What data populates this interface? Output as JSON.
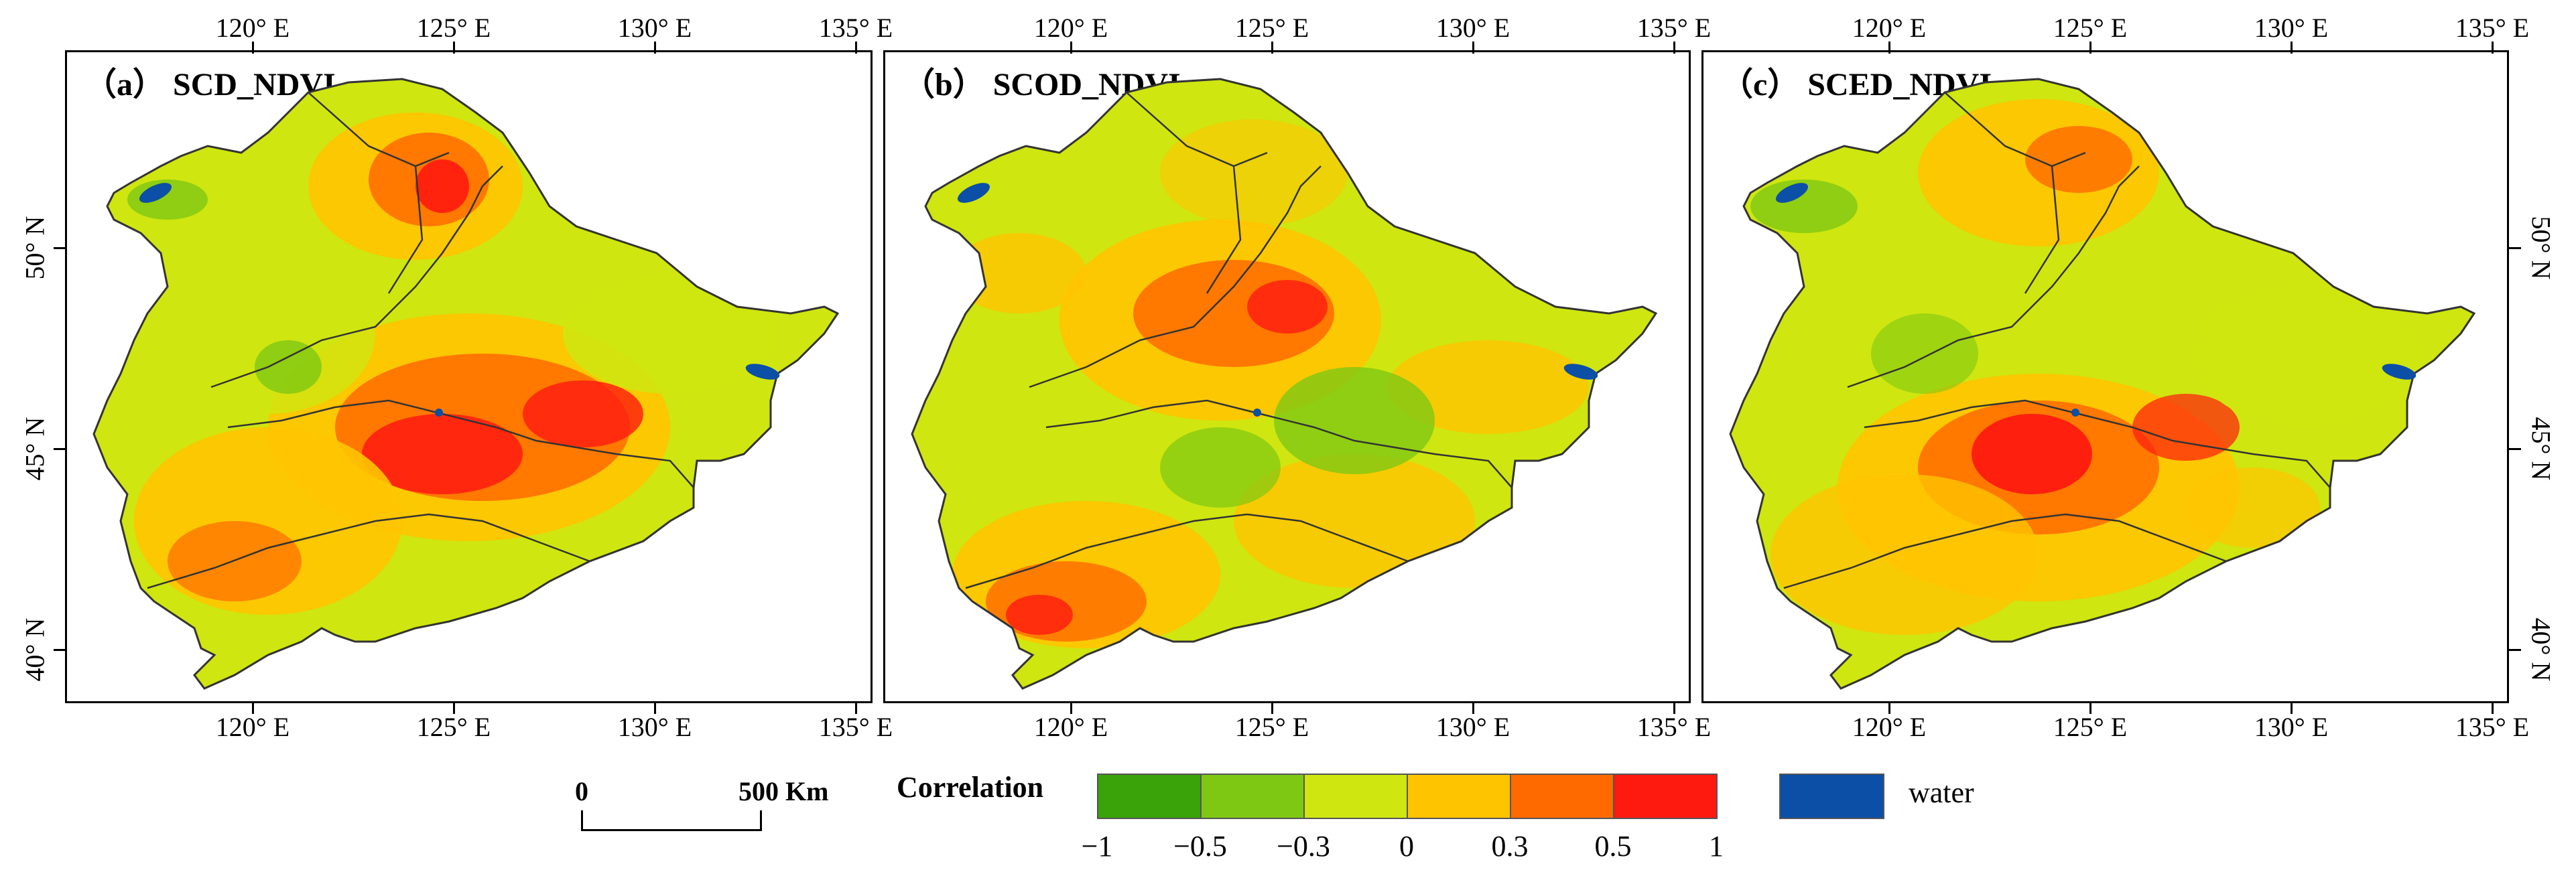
{
  "panels": [
    {
      "title": "（a） SCD_NDVI"
    },
    {
      "title": "（b） SCOD_NDVI"
    },
    {
      "title": "（c） SCED_NDVI"
    }
  ],
  "lon_ticks": [
    "120° E",
    "125° E",
    "130° E",
    "135° E"
  ],
  "lat_ticks": [
    "50° N",
    "45° N",
    "40° N"
  ],
  "colorbar": {
    "title": "Correlation",
    "classes": [
      {
        "range": [
          -1,
          -0.5
        ],
        "color": "#3aa30a"
      },
      {
        "range": [
          -0.5,
          -0.3
        ],
        "color": "#7ec813"
      },
      {
        "range": [
          -0.3,
          0
        ],
        "color": "#cfe610"
      },
      {
        "range": [
          0,
          0.3
        ],
        "color": "#ffc400"
      },
      {
        "range": [
          0.3,
          0.5
        ],
        "color": "#ff6a00"
      },
      {
        "range": [
          0.5,
          1
        ],
        "color": "#ff1a10"
      }
    ],
    "tick_labels": [
      "−1",
      "−0.5",
      "−0.3",
      "0",
      "0.3",
      "0.5",
      "1"
    ]
  },
  "water": {
    "label": "water",
    "color": "#0b4fa6"
  },
  "scale_bar": {
    "start_label": "0",
    "end_label": "500 Km"
  }
}
